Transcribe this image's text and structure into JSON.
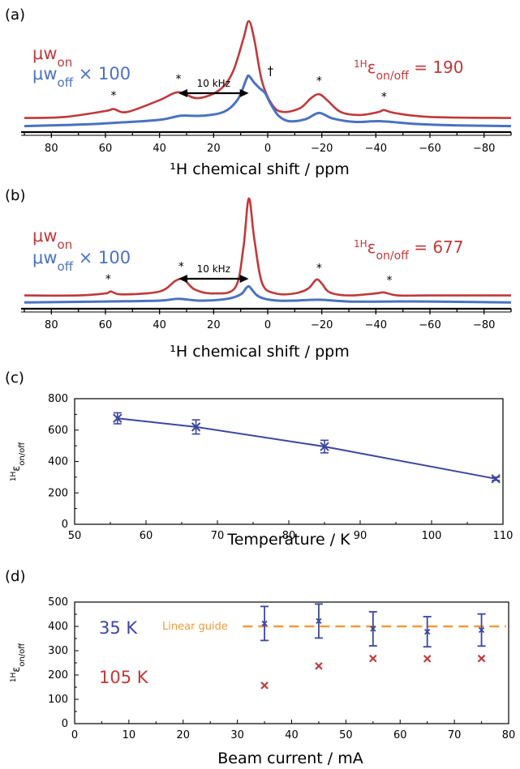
{
  "colors": {
    "red": "#c0393b",
    "blue": "#4a72c0",
    "navy": "#3c46a0",
    "orange": "#f29a3a",
    "black": "#000000"
  },
  "chart_data": [
    {
      "panel": "(a)",
      "type": "line",
      "xlabel": "¹H chemical shift / ppm",
      "xlim": [
        90,
        -90
      ],
      "xticks": [
        80,
        60,
        40,
        20,
        0,
        -20,
        -40,
        -60,
        -80
      ],
      "series": [
        {
          "name": "μw_on",
          "color": "#c0393b",
          "x": [
            90,
            75,
            60,
            57,
            52,
            40,
            33,
            26,
            18,
            13,
            9,
            7,
            5,
            2,
            -2,
            -6,
            -12,
            -16,
            -19,
            -22,
            -27,
            -34,
            -41,
            -43,
            -47,
            -60,
            -90
          ],
          "y": [
            0.02,
            0.03,
            0.09,
            0.11,
            0.08,
            0.2,
            0.28,
            0.22,
            0.3,
            0.48,
            0.82,
            1.0,
            0.82,
            0.38,
            0.14,
            0.08,
            0.12,
            0.22,
            0.26,
            0.2,
            0.08,
            0.05,
            0.08,
            0.1,
            0.07,
            0.03,
            0.02
          ]
        },
        {
          "name": "μw_off × 100",
          "color": "#4a72c0",
          "x": [
            90,
            70,
            55,
            40,
            32,
            24,
            16,
            11,
            8,
            7,
            5,
            3,
            1,
            -1,
            -4,
            -8,
            -14,
            -19,
            -24,
            -32,
            -42,
            -55,
            -70,
            -90
          ],
          "y": [
            -0.03,
            -0.01,
            0.02,
            0.06,
            0.12,
            0.12,
            0.18,
            0.36,
            0.64,
            0.7,
            0.6,
            0.52,
            0.45,
            0.3,
            0.12,
            0.04,
            0.07,
            0.16,
            0.08,
            0.03,
            0.04,
            0.0,
            -0.02,
            -0.03
          ]
        }
      ],
      "annotations": [
        {
          "text": "*",
          "x": 57
        },
        {
          "text": "*",
          "x": 33
        },
        {
          "text": "†",
          "x": -1
        },
        {
          "text": "*",
          "x": -19
        },
        {
          "text": "*",
          "x": -43
        }
      ],
      "arrow_label": "10 kHz",
      "arrow_range": [
        33,
        7
      ],
      "label_on_main": "μw",
      "label_on_sub": "on",
      "label_off_main": "μw",
      "label_off_sub": "off",
      "label_off_tail": " × 100",
      "eps_sup": "1H",
      "eps_main": "ε",
      "eps_sub": "on/off",
      "eps_value": " = 190"
    },
    {
      "panel": "(b)",
      "type": "line",
      "xlabel": "¹H chemical shift / ppm",
      "xlim": [
        90,
        -90
      ],
      "xticks": [
        80,
        60,
        40,
        20,
        0,
        -20,
        -40,
        -60,
        -80
      ],
      "series": [
        {
          "name": "μw_on",
          "color": "#c0393b",
          "x": [
            90,
            70,
            60,
            58,
            54,
            40,
            34,
            31,
            27,
            20,
            12,
            9,
            7,
            5,
            2,
            -3,
            -10,
            -15,
            -18,
            -20,
            -23,
            -30,
            -40,
            -43,
            -48,
            -60,
            -90
          ],
          "y": [
            0.02,
            0.02,
            0.04,
            0.06,
            0.03,
            0.06,
            0.17,
            0.18,
            0.08,
            0.04,
            0.1,
            0.5,
            1.0,
            0.6,
            0.14,
            0.04,
            0.04,
            0.09,
            0.18,
            0.14,
            0.05,
            0.02,
            0.04,
            0.05,
            0.02,
            0.02,
            0.02
          ]
        },
        {
          "name": "μw_off × 100",
          "color": "#4a72c0",
          "x": [
            90,
            60,
            40,
            33,
            25,
            15,
            10,
            8,
            7,
            6,
            4,
            1,
            -4,
            -10,
            -19,
            -30,
            -45,
            -60,
            -90
          ],
          "y": [
            -0.02,
            -0.01,
            0.0,
            0.02,
            0.0,
            0.02,
            0.07,
            0.14,
            0.16,
            0.13,
            0.06,
            0.02,
            0.0,
            0.0,
            0.01,
            -0.01,
            -0.01,
            -0.01,
            -0.02
          ]
        }
      ],
      "annotations": [
        {
          "text": "*",
          "x": 59
        },
        {
          "text": "*",
          "x": 32
        },
        {
          "text": "*",
          "x": -19
        },
        {
          "text": "*",
          "x": -45
        }
      ],
      "arrow_label": "10 kHz",
      "arrow_range": [
        33,
        7
      ],
      "label_on_main": "μw",
      "label_on_sub": "on",
      "label_off_main": "μw",
      "label_off_sub": "off",
      "label_off_tail": " × 100",
      "eps_sup": "1H",
      "eps_main": "ε",
      "eps_sub": "on/off",
      "eps_value": " = 677"
    },
    {
      "panel": "(c)",
      "type": "line",
      "xlabel": "Temperature / K",
      "ylabel_sup": "1H",
      "ylabel_main": "ε",
      "ylabel_sub": "on/off",
      "xlim": [
        50,
        110
      ],
      "ylim": [
        0,
        800
      ],
      "xticks": [
        50,
        60,
        70,
        80,
        90,
        100,
        110
      ],
      "yticks": [
        0,
        200,
        400,
        600,
        800
      ],
      "points": [
        {
          "x": 56,
          "y": 675,
          "err": 35
        },
        {
          "x": 67,
          "y": 620,
          "err": 45
        },
        {
          "x": 85,
          "y": 495,
          "err": 40
        },
        {
          "x": 109,
          "y": 290,
          "err": 10
        }
      ]
    },
    {
      "panel": "(d)",
      "type": "scatter",
      "xlabel": "Beam current / mA",
      "ylabel_sup": "1H",
      "ylabel_main": "ε",
      "ylabel_sub": "on/off",
      "xlim": [
        0,
        80
      ],
      "ylim": [
        0,
        500
      ],
      "xticks": [
        0,
        10,
        20,
        30,
        40,
        50,
        60,
        70,
        80
      ],
      "yticks": [
        0,
        100,
        200,
        300,
        400,
        500
      ],
      "series": [
        {
          "name": "35 K",
          "color": "#3c46a0",
          "points": [
            {
              "x": 35,
              "y": 412,
              "err": 70
            },
            {
              "x": 45,
              "y": 422,
              "err": 70
            },
            {
              "x": 55,
              "y": 390,
              "err": 70
            },
            {
              "x": 65,
              "y": 378,
              "err": 62
            },
            {
              "x": 75,
              "y": 385,
              "err": 66
            }
          ]
        },
        {
          "name": "105 K",
          "color": "#c0393b",
          "points": [
            {
              "x": 35,
              "y": 157
            },
            {
              "x": 45,
              "y": 237
            },
            {
              "x": 55,
              "y": 268
            },
            {
              "x": 65,
              "y": 267
            },
            {
              "x": 75,
              "y": 268
            }
          ]
        }
      ],
      "guide": {
        "label": "Linear guide",
        "y": 400,
        "x_from": 31,
        "x_to": 80
      }
    }
  ]
}
